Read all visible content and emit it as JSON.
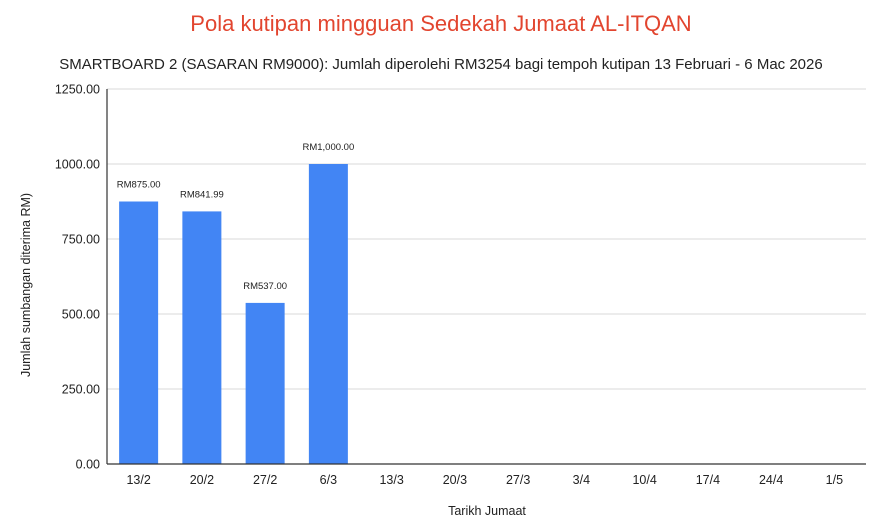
{
  "chart_data": {
    "type": "bar",
    "title": "Pola kutipan mingguan Sedekah Jumaat AL-ITQAN",
    "subtitle": "SMARTBOARD 2 (SASARAN RM9000): Jumlah diperolehi RM3254 bagi tempoh kutipan 13 Februari - 6 Mac 2026",
    "xlabel": "Tarikh Jumaat",
    "ylabel": "Jumlah sumbangan diterima RM)",
    "ylim": [
      0,
      1250
    ],
    "yticks": [
      "0.00",
      "250.00",
      "500.00",
      "750.00",
      "1000.00",
      "1250.00"
    ],
    "categories": [
      "13/2",
      "20/2",
      "27/2",
      "6/3",
      "13/3",
      "20/3",
      "27/3",
      "3/4",
      "10/4",
      "17/4",
      "24/4",
      "1/5"
    ],
    "values": [
      875.0,
      841.99,
      537.0,
      1000.0,
      null,
      null,
      null,
      null,
      null,
      null,
      null,
      null
    ],
    "data_labels": [
      "RM875.00",
      "RM841.99",
      "RM537.00",
      "RM1,000.00",
      "",
      "",
      "",
      "",
      "",
      "",
      "",
      ""
    ],
    "grid": true,
    "legend": "none",
    "colors": {
      "bar": "#4285f4",
      "title": "#e2452f",
      "grid": "#d9d9d9",
      "axis": "#333333"
    }
  }
}
